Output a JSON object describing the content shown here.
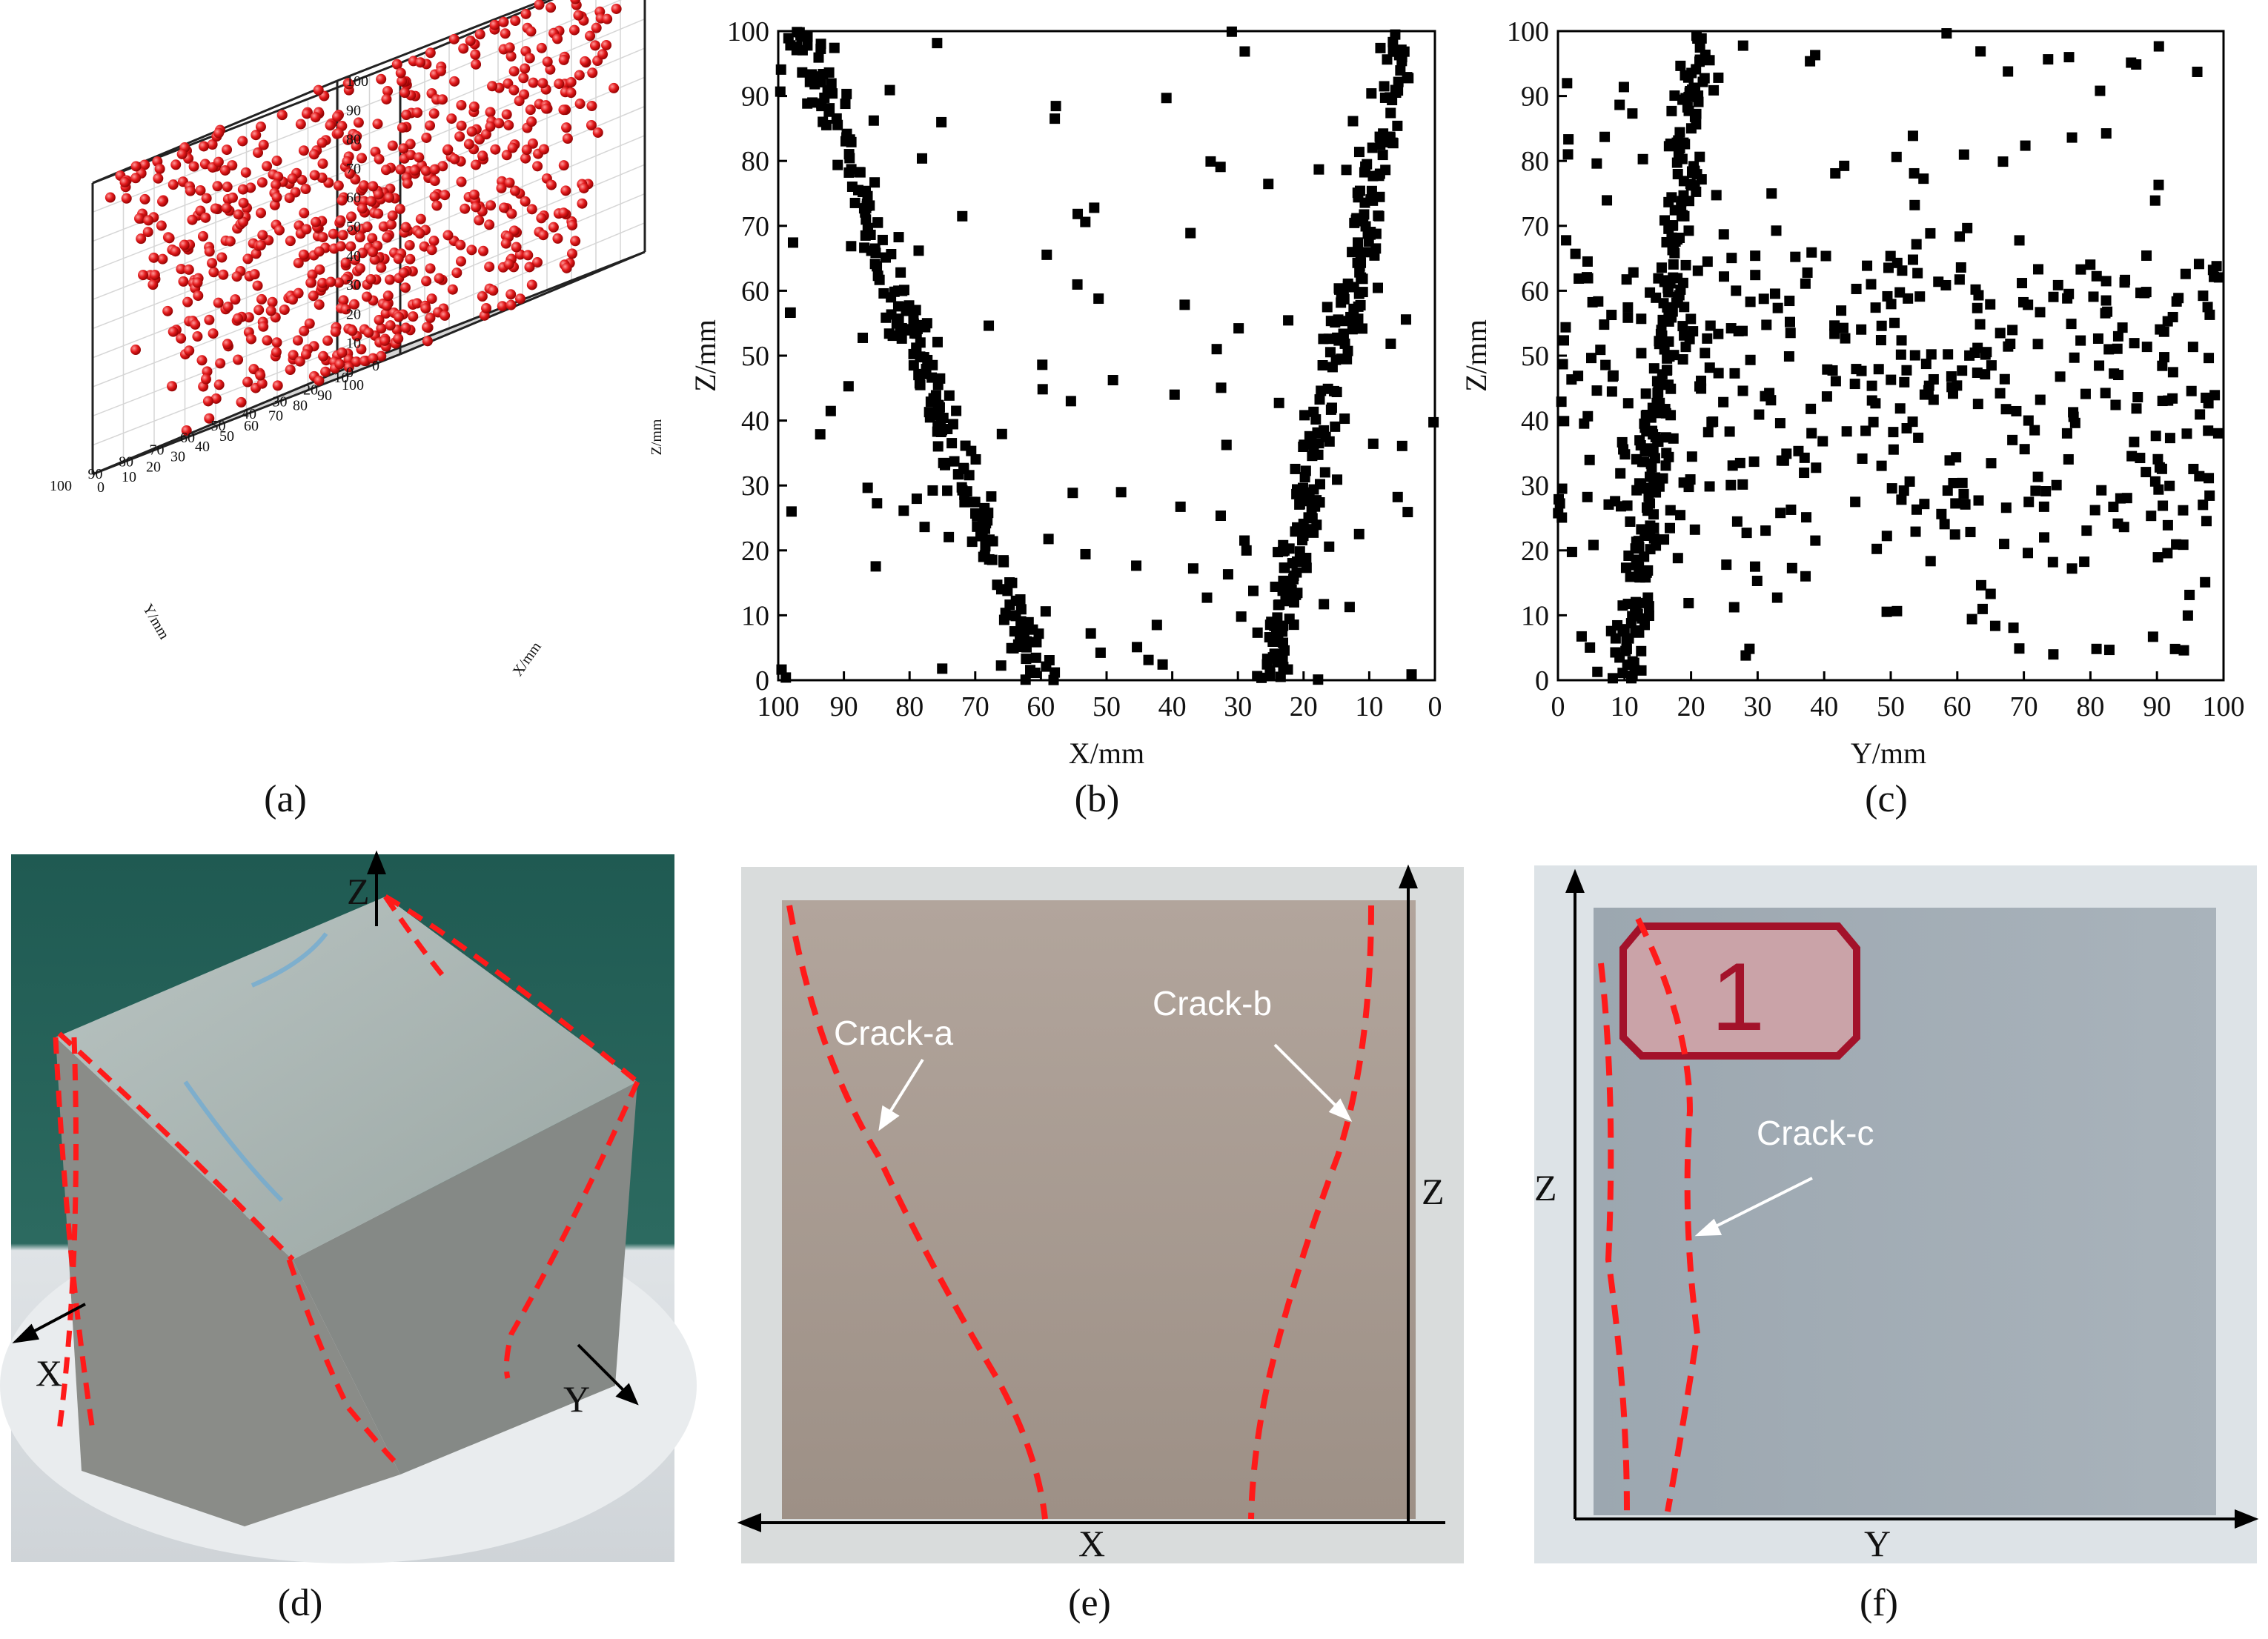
{
  "panel_labels": {
    "a": "(a)",
    "b": "(b)",
    "c": "(c)",
    "d": "(d)",
    "e": "(e)",
    "f": "(f)"
  },
  "colors": {
    "points_3d": "#e31a1c",
    "points_2d": "#000000",
    "crack_line": "#ff1a1a"
  },
  "photos": {
    "d": {
      "axis_x": "X",
      "axis_y": "Y",
      "axis_z": "Z"
    },
    "e": {
      "axis_x": "X",
      "axis_z": "Z",
      "crack_a": "Crack-a",
      "crack_b": "Crack-b"
    },
    "f": {
      "axis_y": "Y",
      "axis_z": "Z",
      "crack_c": "Crack-c",
      "sticker": "1"
    }
  },
  "chart_data": [
    {
      "id": "a",
      "type": "scatter",
      "projection": "3d",
      "xlabel": "X/mm",
      "ylabel": "Y/mm",
      "zlabel": "Z/mm",
      "xlim": [
        0,
        100
      ],
      "ylim": [
        0,
        100
      ],
      "zlim": [
        0,
        100
      ],
      "xticks": [
        "0",
        "10",
        "20",
        "30",
        "40",
        "50",
        "60",
        "70",
        "80",
        "90",
        "100"
      ],
      "yticks": [
        "0",
        "10",
        "20",
        "30",
        "40",
        "50",
        "60",
        "70",
        "80",
        "90",
        "100"
      ],
      "zticks": [
        "0",
        "10",
        "20",
        "30",
        "40",
        "50",
        "60",
        "70",
        "80",
        "90",
        "100"
      ],
      "marker": "sphere",
      "color": "#e31a1c",
      "grid": true
    },
    {
      "id": "b",
      "type": "scatter",
      "xlabel": "X/mm",
      "ylabel": "Z/mm",
      "xlim": [
        100,
        0
      ],
      "ylim": [
        0,
        100
      ],
      "xticks": [
        "100",
        "90",
        "80",
        "70",
        "60",
        "50",
        "40",
        "30",
        "20",
        "10",
        "0"
      ],
      "yticks": [
        "0",
        "10",
        "20",
        "30",
        "40",
        "50",
        "60",
        "70",
        "80",
        "90",
        "100"
      ],
      "marker": "square",
      "color": "#000000",
      "grid": false
    },
    {
      "id": "c",
      "type": "scatter",
      "xlabel": "Y/mm",
      "ylabel": "Z/mm",
      "xlim": [
        0,
        100
      ],
      "ylim": [
        0,
        100
      ],
      "xticks": [
        "0",
        "10",
        "20",
        "30",
        "40",
        "50",
        "60",
        "70",
        "80",
        "90",
        "100"
      ],
      "yticks": [
        "0",
        "10",
        "20",
        "30",
        "40",
        "50",
        "60",
        "70",
        "80",
        "90",
        "100"
      ],
      "marker": "square",
      "color": "#000000",
      "grid": false
    }
  ]
}
